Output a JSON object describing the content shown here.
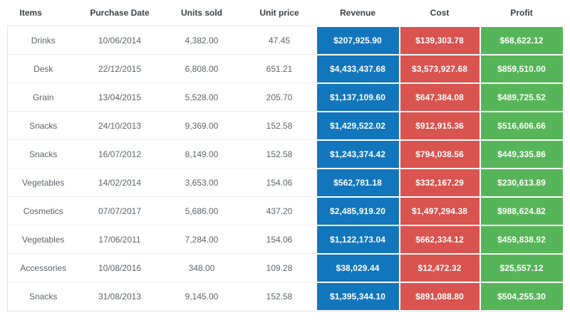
{
  "colors": {
    "revenue": "#1276bd",
    "cost": "#d9534f",
    "profit": "#57b559",
    "header_text": "#3c4043",
    "body_text": "#5f6368",
    "border": "#e3e3e3"
  },
  "table": {
    "columns": [
      "Items",
      "Purchase Date",
      "Units sold",
      "Unit price",
      "Revenue",
      "Cost",
      "Profit"
    ],
    "rows": [
      {
        "item": "Drinks",
        "purchase_date": "10/06/2014",
        "units_sold": "4,382.00",
        "unit_price": "47.45",
        "revenue": "$207,925.90",
        "cost": "$139,303.78",
        "profit": "$68,622.12"
      },
      {
        "item": "Desk",
        "purchase_date": "22/12/2015",
        "units_sold": "6,808.00",
        "unit_price": "651.21",
        "revenue": "$4,433,437.68",
        "cost": "$3,573,927.68",
        "profit": "$859,510.00"
      },
      {
        "item": "Grain",
        "purchase_date": "13/04/2015",
        "units_sold": "5,528.00",
        "unit_price": "205.70",
        "revenue": "$1,137,109.60",
        "cost": "$647,384.08",
        "profit": "$489,725.52"
      },
      {
        "item": "Snacks",
        "purchase_date": "24/10/2013",
        "units_sold": "9,369.00",
        "unit_price": "152.58",
        "revenue": "$1,429,522.02",
        "cost": "$912,915.36",
        "profit": "$516,606.66"
      },
      {
        "item": "Snacks",
        "purchase_date": "16/07/2012",
        "units_sold": "8,149.00",
        "unit_price": "152.58",
        "revenue": "$1,243,374.42",
        "cost": "$794,038.56",
        "profit": "$449,335.86"
      },
      {
        "item": "Vegetables",
        "purchase_date": "14/02/2014",
        "units_sold": "3,653.00",
        "unit_price": "154.06",
        "revenue": "$562,781.18",
        "cost": "$332,167.29",
        "profit": "$230,613.89"
      },
      {
        "item": "Cosmetics",
        "purchase_date": "07/07/2017",
        "units_sold": "5,686.00",
        "unit_price": "437.20",
        "revenue": "$2,485,919.20",
        "cost": "$1,497,294.38",
        "profit": "$988,624.82"
      },
      {
        "item": "Vegetables",
        "purchase_date": "17/06/2011",
        "units_sold": "7,284.00",
        "unit_price": "154.06",
        "revenue": "$1,122,173.04",
        "cost": "$662,334.12",
        "profit": "$459,838.92"
      },
      {
        "item": "Accessories",
        "purchase_date": "10/08/2016",
        "units_sold": "348.00",
        "unit_price": "109.28",
        "revenue": "$38,029.44",
        "cost": "$12,472.32",
        "profit": "$25,557.12"
      },
      {
        "item": "Snacks",
        "purchase_date": "31/08/2013",
        "units_sold": "9,145.00",
        "unit_price": "152.58",
        "revenue": "$1,395,344.10",
        "cost": "$891,088.80",
        "profit": "$504,255.30"
      }
    ]
  }
}
